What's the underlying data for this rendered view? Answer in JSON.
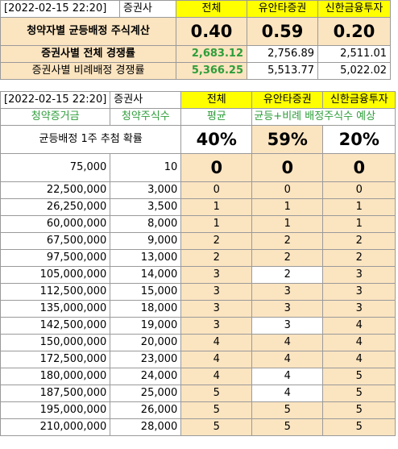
{
  "top": {
    "header": {
      "date": "[2022-02-15 22:20]",
      "label": "증권사",
      "cols": [
        "전체",
        "유안타증권",
        "신한금융투자"
      ]
    },
    "row1": {
      "label": "청약자별 균등배정 주식계산",
      "values": [
        "0.40",
        "0.59",
        "0.20"
      ]
    },
    "row2": {
      "label": "증권사별 전체 경쟁률",
      "values": [
        "2,683.12",
        "2,756.89",
        "2,511.01"
      ]
    },
    "row3": {
      "label": "증권사별 비례배정 경쟁률",
      "values": [
        "5,366.25",
        "5,513.77",
        "5,022.02"
      ]
    }
  },
  "bottom": {
    "header": {
      "date": "[2022-02-15 22:20]",
      "label": "증권사",
      "cols": [
        "전체",
        "유안타증권",
        "신한금융투자"
      ]
    },
    "subheader": {
      "amount": "청약증거금",
      "shares": "청약주식수",
      "avg": "평균",
      "note": "각 균등+비례 배정주식수 예상"
    },
    "prob": {
      "label": "균등배정 1주 추첨 확률",
      "values": [
        "40%",
        "59%",
        "20%"
      ]
    },
    "rows": [
      {
        "amount": "75,000",
        "shares": "10",
        "v": [
          "0",
          "0",
          "0"
        ]
      },
      {
        "amount": "22,500,000",
        "shares": "3,000",
        "v": [
          "0",
          "0",
          "0"
        ]
      },
      {
        "amount": "26,250,000",
        "shares": "3,500",
        "v": [
          "1",
          "1",
          "1"
        ]
      },
      {
        "amount": "60,000,000",
        "shares": "8,000",
        "v": [
          "1",
          "1",
          "1"
        ]
      },
      {
        "amount": "67,500,000",
        "shares": "9,000",
        "v": [
          "2",
          "2",
          "2"
        ]
      },
      {
        "amount": "97,500,000",
        "shares": "13,000",
        "v": [
          "2",
          "2",
          "2"
        ]
      },
      {
        "amount": "105,000,000",
        "shares": "14,000",
        "v": [
          "3",
          "2",
          "3"
        ]
      },
      {
        "amount": "112,500,000",
        "shares": "15,000",
        "v": [
          "3",
          "3",
          "3"
        ]
      },
      {
        "amount": "135,000,000",
        "shares": "18,000",
        "v": [
          "3",
          "3",
          "3"
        ]
      },
      {
        "amount": "142,500,000",
        "shares": "19,000",
        "v": [
          "3",
          "3",
          "4"
        ]
      },
      {
        "amount": "150,000,000",
        "shares": "20,000",
        "v": [
          "4",
          "4",
          "4"
        ]
      },
      {
        "amount": "172,500,000",
        "shares": "23,000",
        "v": [
          "4",
          "4",
          "4"
        ]
      },
      {
        "amount": "180,000,000",
        "shares": "24,000",
        "v": [
          "4",
          "4",
          "5"
        ]
      },
      {
        "amount": "187,500,000",
        "shares": "25,000",
        "v": [
          "5",
          "4",
          "5"
        ]
      },
      {
        "amount": "195,000,000",
        "shares": "26,000",
        "v": [
          "5",
          "5",
          "5"
        ]
      },
      {
        "amount": "210,000,000",
        "shares": "28,000",
        "v": [
          "5",
          "5",
          "5"
        ]
      }
    ]
  },
  "colors": {
    "yellow": "#ffff00",
    "peach": "#fbe4c0",
    "green": "#2e9e3a"
  }
}
